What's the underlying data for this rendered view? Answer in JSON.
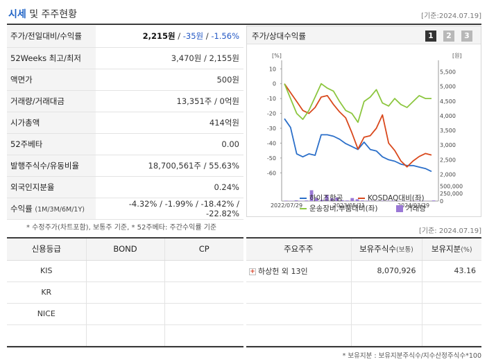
{
  "header": {
    "title_main": "시세",
    "title_rest": " 및 주주현황",
    "date": "[기준:2024.07.19]"
  },
  "info_rows": [
    {
      "label": "주가/전일대비/수익률",
      "price": "2,215원",
      "sep1": " / ",
      "change": "-35원",
      "sep2": " / ",
      "rate": "-1.56%"
    },
    {
      "label": "52Weeks 최고/최저",
      "value": "3,470원 / 2,155원"
    },
    {
      "label": "액면가",
      "value": "500원"
    },
    {
      "label": "거래량/거래대금",
      "value": "13,351주 / 0억원"
    },
    {
      "label": "시가총액",
      "value": "414억원"
    },
    {
      "label": "52주베타",
      "value": "0.00"
    },
    {
      "label": "발행주식수/유동비율",
      "value": "18,700,561주 / 55.63%"
    },
    {
      "label": "외국인지분율",
      "value": "0.24%"
    },
    {
      "label": "수익률",
      "label_sub": "(1M/3M/6M/1Y)",
      "value": "-4.32% / -1.99% / -18.42% / -22.82%"
    }
  ],
  "footnote1": "* 수정주가(차트포함), 보통주 기준, * 52주베타: 주간수익률 기준",
  "date2": "[기준: 2024.07.19]",
  "panel": {
    "title": "주가/상대수익률",
    "buttons": [
      "1",
      "2",
      "3"
    ]
  },
  "chart_data": {
    "type": "line",
    "left_unit": "[%]",
    "right_unit": "[원]",
    "left_ticks": [
      "10",
      "0",
      "-10",
      "-20",
      "-30",
      "-40",
      "-50",
      "-60"
    ],
    "right_ticks": [
      "5,500",
      "5,000",
      "4,500",
      "4,000",
      "3,500",
      "3,000",
      "2,500",
      "2,000"
    ],
    "volume_ticks": [
      "500,000",
      "250,000",
      "0"
    ],
    "x_labels": [
      "2022/07/29",
      "2023/05/31",
      "2024/03/29"
    ],
    "ylim_left": [
      -65,
      12
    ],
    "ylim_right": [
      1800,
      5700
    ],
    "volume_max": 600000,
    "series": [
      {
        "name": "하이즈항공",
        "axis": "right",
        "color": "#2b6fc9",
        "values": [
          3900,
          3600,
          2700,
          2600,
          2700,
          2650,
          3350,
          3350,
          3300,
          3200,
          3050,
          2950,
          2850,
          3100,
          2850,
          2800,
          2600,
          2500,
          2450,
          2350,
          2300,
          2300,
          2250,
          2200,
          2100
        ]
      },
      {
        "name": "KOSDAQ대비(좌)",
        "axis": "left",
        "color": "#d9481c",
        "values": [
          0,
          -6,
          -12,
          -18,
          -20,
          -16,
          -9,
          -8,
          -14,
          -19,
          -23,
          -33,
          -44,
          -36,
          -35,
          -30,
          -21,
          -40,
          -45,
          -52,
          -56,
          -52,
          -49,
          -47,
          -48
        ]
      },
      {
        "name": "운송장비,부품대비(좌)",
        "axis": "left",
        "color": "#8cc63f",
        "values": [
          0,
          -10,
          -20,
          -24,
          -18,
          -9,
          0,
          -3,
          -5,
          -12,
          -18,
          -20,
          -26,
          -12,
          -9,
          -4,
          -13,
          -15,
          -10,
          -14,
          -16,
          -12,
          -8,
          -10,
          -10
        ]
      }
    ],
    "volume": {
      "name": "거래량",
      "color": "#9a78d6",
      "values": [
        15000,
        10000,
        25000,
        10000,
        20000,
        360000,
        100000,
        40000,
        210000,
        90000,
        120000,
        30000,
        20000,
        100000,
        60000,
        20000,
        15000,
        10000,
        8000,
        12000,
        10000,
        15000,
        8000,
        10000,
        6000,
        8000,
        12000,
        10000,
        5000,
        20000
      ]
    }
  },
  "credit": {
    "headers": [
      "신용등급",
      "BOND",
      "CP"
    ],
    "rows": [
      [
        "KIS",
        "",
        ""
      ],
      [
        "KR",
        "",
        ""
      ],
      [
        "NICE",
        "",
        ""
      ],
      [
        "",
        "",
        ""
      ]
    ]
  },
  "holders": {
    "h1": "주요주주",
    "h2": "보유주식수",
    "h2_sub": "(보통)",
    "h3": "보유지분",
    "h3_sub": "(%)",
    "rows": [
      {
        "name": "하상헌 외 13인",
        "shares": "8,070,926",
        "pct": "43.16"
      }
    ]
  },
  "footnote2": "* 보유지분 : 보유지분주식수/지수산정주식수*100"
}
